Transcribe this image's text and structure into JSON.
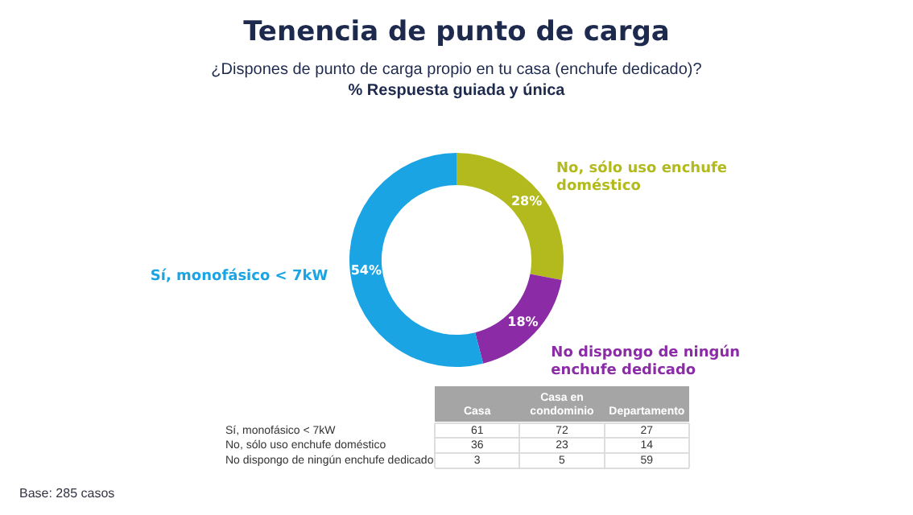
{
  "chart_data": [
    {
      "type": "donut",
      "title": "Tenencia de punto de carga",
      "subtitle": "¿Dispones de punto de carga propio en tu casa (enchufe dedicado)?\n% Respuesta guiada y única",
      "categories": [
        "No, sólo uso enchufe doméstico",
        "No dispongo de ningún enchufe dedicado",
        "Sí, monofásico < 7kW"
      ],
      "values": [
        28,
        18,
        54
      ],
      "colors": [
        "#b2ba1e",
        "#8b2ca6",
        "#1ba4e4"
      ],
      "value_labels": [
        "28%",
        "18%",
        "54%"
      ],
      "legend": false,
      "annotations": [
        "Base: 285 casos"
      ]
    },
    {
      "type": "heatmap",
      "categories": [
        "Casa",
        "Casa en condominio",
        "Departamento"
      ],
      "y_categories": [
        "Sí, monofásico < 7kW",
        "No, sólo uso enchufe doméstico",
        "No dispongo de ningún enchufe dedicado"
      ],
      "cells": [
        [
          61,
          72,
          27
        ],
        [
          36,
          23,
          14
        ],
        [
          3,
          5,
          59
        ]
      ],
      "data_labels": true
    }
  ]
}
